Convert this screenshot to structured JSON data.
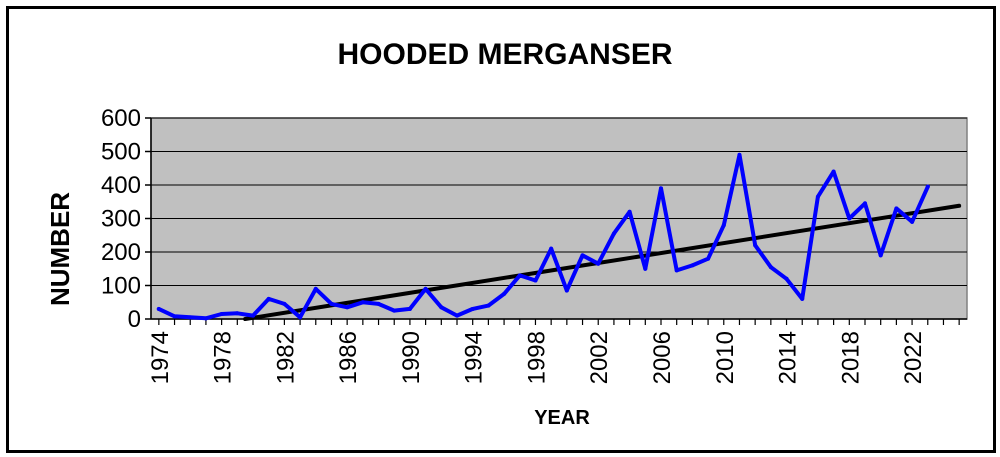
{
  "chart_data": {
    "type": "line",
    "title": "HOODED MERGANSER",
    "xlabel": "YEAR",
    "ylabel": "NUMBER",
    "ylim": [
      0,
      600
    ],
    "yticks": [
      0,
      100,
      200,
      300,
      400,
      500,
      600
    ],
    "xlim": [
      1973.5,
      2025.5
    ],
    "xticks": [
      "1974",
      "1978",
      "1982",
      "1986",
      "1990",
      "1994",
      "1998",
      "2002",
      "2006",
      "2010",
      "2014",
      "2018",
      "2022"
    ],
    "grid": true,
    "plot_background": "#c0c0c0",
    "series": [
      {
        "color": "#0000ff",
        "x": [
          1974,
          1975,
          1976,
          1977,
          1978,
          1979,
          1980,
          1981,
          1982,
          1983,
          1984,
          1985,
          1986,
          1987,
          1988,
          1989,
          1990,
          1991,
          1992,
          1993,
          1994,
          1995,
          1996,
          1997,
          1998,
          1999,
          2000,
          2001,
          2002,
          2003,
          2004,
          2005,
          2006,
          2007,
          2008,
          2009,
          2010,
          2011,
          2012,
          2013,
          2014,
          2015,
          2016,
          2017,
          2018,
          2019,
          2020,
          2021,
          2022,
          2023
        ],
        "y": [
          30,
          8,
          5,
          2,
          15,
          17,
          10,
          60,
          45,
          5,
          90,
          45,
          35,
          50,
          45,
          25,
          30,
          90,
          35,
          10,
          30,
          40,
          75,
          130,
          115,
          210,
          85,
          190,
          165,
          255,
          320,
          150,
          390,
          145,
          160,
          180,
          280,
          490,
          220,
          155,
          120,
          60,
          365,
          440,
          300,
          345,
          190,
          330,
          290,
          395
        ]
      }
    ],
    "trendline": {
      "color": "#000000",
      "x": [
        1979.5,
        2025
      ],
      "y": [
        0,
        338
      ]
    }
  }
}
